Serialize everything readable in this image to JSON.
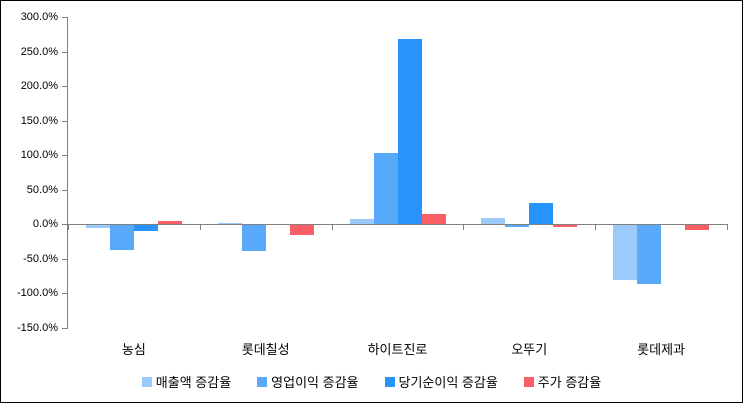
{
  "chart_data": {
    "type": "bar",
    "title": "",
    "categories": [
      "농심",
      "롯데칠성",
      "하이트진로",
      "오뚜기",
      "롯데제과"
    ],
    "series": [
      {
        "name": "매출액 증감율",
        "color": "#9CCAFB",
        "values": [
          -5,
          2,
          7,
          8,
          -79
        ]
      },
      {
        "name": "영업이익 증감율",
        "color": "#58A9FA",
        "values": [
          -36,
          -38,
          103,
          -3,
          -85
        ]
      },
      {
        "name": "당기순이익 증감율",
        "color": "#2893FA",
        "values": [
          -8,
          0,
          268,
          31,
          0
        ]
      },
      {
        "name": "주가 증감율",
        "color": "#FA5F63",
        "values": [
          5,
          -15,
          15,
          -3,
          -7
        ]
      }
    ],
    "unit": "percent",
    "ylim": [
      -150,
      300
    ],
    "ytick_step": 50,
    "ytick_labels": [
      "300.0%",
      "250.0%",
      "200.0%",
      "150.0%",
      "100.0%",
      "50.0%",
      "0.0%",
      "-50.0%",
      "-100.0%",
      "-150.0%"
    ],
    "grid": false,
    "legend_position": "bottom",
    "axis_color": "#808080",
    "text_color": "#000000",
    "background_color": "#FFFFFF",
    "border_color": "#000000"
  }
}
